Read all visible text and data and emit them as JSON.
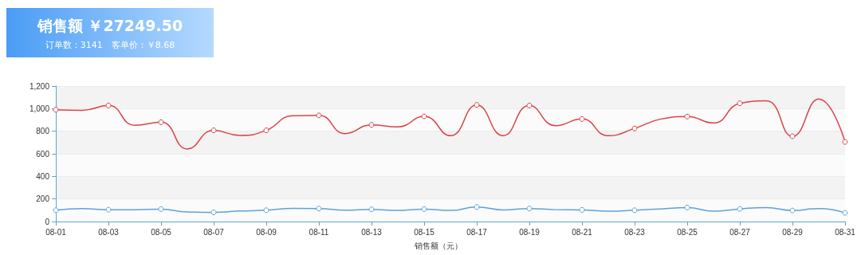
{
  "chart_data": {
    "type": "line",
    "title": "销售额 ￥27249.50",
    "subtitle": "订单数：3141　客单价：￥8.68",
    "categories": [
      "08-01",
      null,
      "08-03",
      null,
      "08-05",
      null,
      "08-07",
      null,
      "08-09",
      null,
      "08-11",
      null,
      "08-13",
      null,
      "08-15",
      null,
      "08-17",
      null,
      "08-19",
      null,
      "08-21",
      null,
      "08-23",
      null,
      "08-25",
      null,
      "08-27",
      null,
      "08-29",
      null,
      "08-31"
    ],
    "series": [
      {
        "name": "销售额（元）",
        "color": "#d9434b",
        "values": [
          990,
          985,
          1028,
          853,
          880,
          643,
          808,
          763,
          808,
          937,
          940,
          779,
          856,
          839,
          932,
          760,
          1033,
          760,
          1028,
          849,
          908,
          760,
          825,
          908,
          930,
          873,
          1047,
          1069,
          755,
          1085,
          705
        ]
      },
      {
        "color": "#5ba3dc",
        "values": [
          100,
          115,
          105,
          105,
          110,
          84,
          81,
          93,
          100,
          117,
          115,
          100,
          108,
          98,
          110,
          98,
          129,
          103,
          115,
          105,
          103,
          91,
          100,
          112,
          124,
          91,
          112,
          124,
          98,
          115,
          77
        ]
      }
    ],
    "ylim": [
      0,
      1200
    ],
    "yticks": [
      0,
      200,
      400,
      600,
      800,
      {
        "value": 1000,
        "label": "1,000"
      },
      {
        "value": 1200,
        "label": "1,200"
      }
    ],
    "grid": "y",
    "legend": "bottom",
    "marker": "circle",
    "line_style": "solid"
  }
}
